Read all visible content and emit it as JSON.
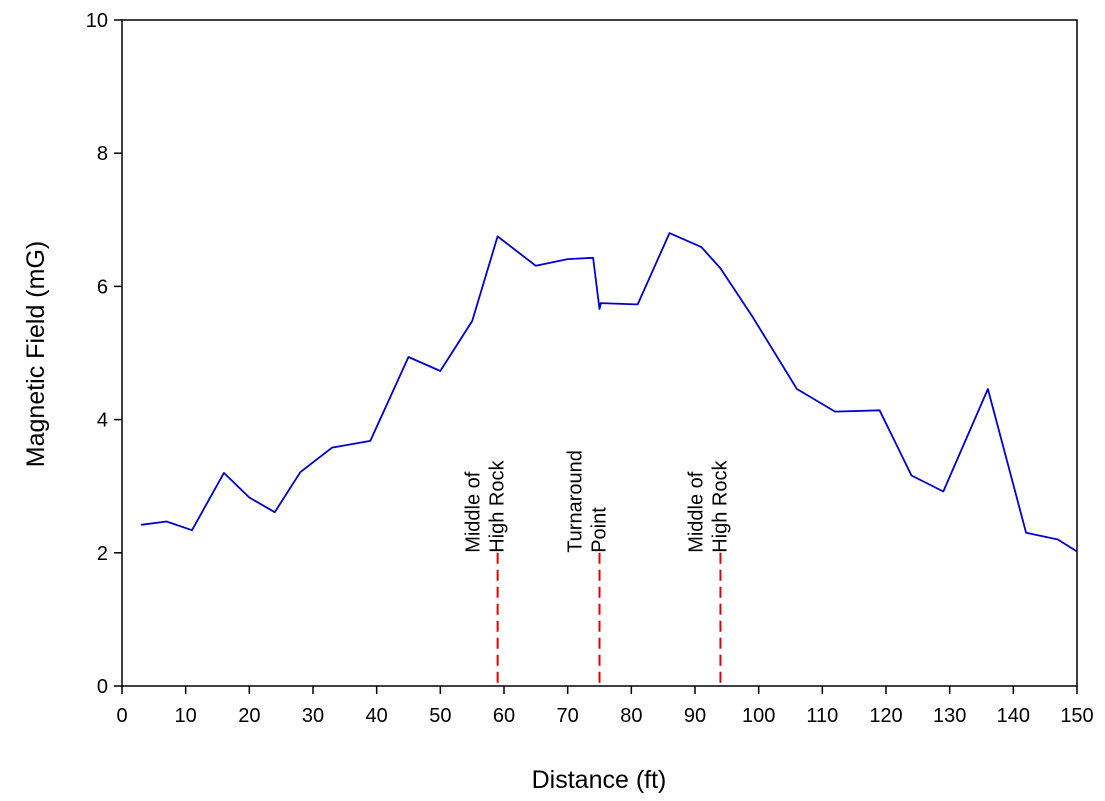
{
  "chart_data": {
    "type": "line",
    "title": "",
    "xlabel": "Distance (ft)",
    "ylabel": "Magnetic Field (mG)",
    "xlim": [
      0,
      150
    ],
    "ylim": [
      0,
      10
    ],
    "xticks": [
      0,
      10,
      20,
      30,
      40,
      50,
      60,
      70,
      80,
      90,
      100,
      110,
      120,
      130,
      140,
      150
    ],
    "yticks": [
      0,
      2,
      4,
      6,
      8,
      10
    ],
    "grid": false,
    "legend": "none",
    "series": [
      {
        "color": "#0000cc",
        "x": [
          3,
          7,
          11,
          16,
          20,
          24,
          28,
          33,
          39,
          45,
          50,
          55,
          59,
          65,
          70,
          74,
          75,
          75.2,
          81,
          86,
          91,
          94,
          99,
          106,
          112,
          119,
          124,
          129,
          136,
          142,
          147,
          150
        ],
        "y": [
          2.42,
          2.47,
          2.34,
          3.2,
          2.83,
          2.61,
          3.21,
          3.58,
          3.68,
          4.94,
          4.73,
          5.48,
          6.75,
          6.31,
          6.41,
          6.43,
          5.66,
          5.75,
          5.73,
          6.8,
          6.59,
          6.27,
          5.55,
          4.46,
          4.12,
          4.14,
          3.16,
          2.92,
          4.46,
          2.3,
          2.2,
          2.02
        ]
      }
    ],
    "markers": [
      {
        "x": 59,
        "y_top": 2.0,
        "color": "#dd0000",
        "label_lines": [
          "Middle of",
          "High Rock"
        ]
      },
      {
        "x": 75,
        "y_top": 2.0,
        "color": "#dd0000",
        "label_lines": [
          "Turnaround",
          "Point"
        ]
      },
      {
        "x": 94,
        "y_top": 2.0,
        "color": "#dd0000",
        "label_lines": [
          "Middle of",
          "High Rock"
        ]
      }
    ]
  }
}
